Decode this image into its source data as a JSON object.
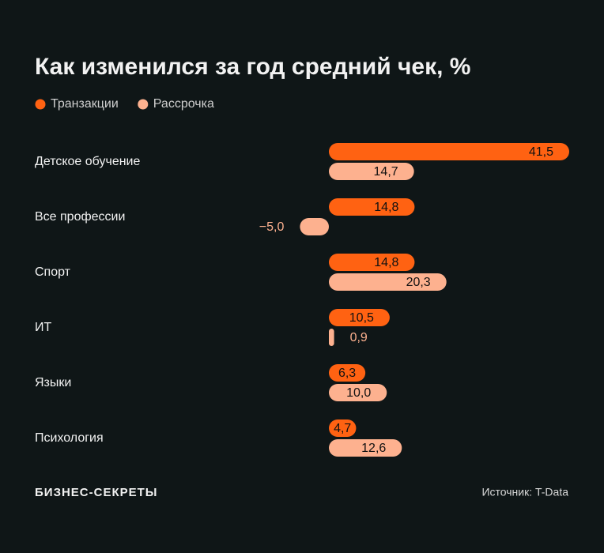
{
  "chart_data": {
    "type": "bar",
    "orientation": "horizontal",
    "title": "Как изменился за год средний чек, %",
    "categories": [
      "Детское обучение",
      "Все профессии",
      "Спорт",
      "ИТ",
      "Языки",
      "Психология"
    ],
    "series": [
      {
        "name": "Транзакции",
        "color": "#ff6212",
        "values": [
          41.5,
          14.8,
          14.8,
          10.5,
          6.3,
          4.7
        ],
        "value_labels": [
          "41,5",
          "14,8",
          "14,8",
          "10,5",
          "6,3",
          "4,7"
        ]
      },
      {
        "name": "Рассрочка",
        "color": "#fdb18f",
        "values": [
          14.7,
          -5.0,
          20.3,
          0.9,
          10.0,
          12.6
        ],
        "value_labels": [
          "14,7",
          "−5,0",
          "20,3",
          "0,9",
          "10,0",
          "12,6"
        ]
      }
    ],
    "legend": "top-left",
    "brand": "БИЗНЕС-СЕКРЕТЫ",
    "source": "Источник: T-Data"
  }
}
